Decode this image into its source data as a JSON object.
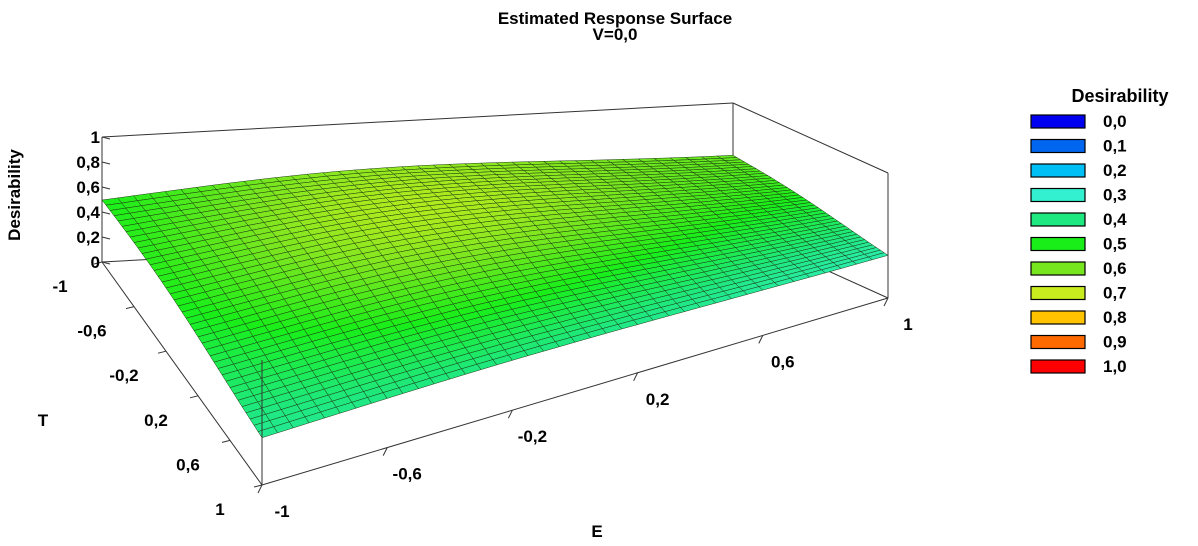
{
  "chart_data": {
    "type": "surface",
    "title": "Estimated Response Surface",
    "subtitle": "V=0,0",
    "xlabel": "E",
    "ylabel": "T",
    "zlabel": "Desirability",
    "xticks": [
      "-1",
      "-0,6",
      "-0,2",
      "0,2",
      "0,6",
      "1"
    ],
    "yticks": [
      "-1",
      "-0,6",
      "-0,2",
      "0,2",
      "0,6",
      "1"
    ],
    "zticks": [
      "0",
      "0,2",
      "0,4",
      "0,6",
      "0,8",
      "1"
    ],
    "xlim": [
      -1,
      1
    ],
    "ylim": [
      -1,
      1
    ],
    "zlim": [
      0,
      1
    ],
    "grid_size": 41,
    "corner_values": [
      {
        "E": -1,
        "T": -1,
        "desirability": 0.42
      },
      {
        "E": 1,
        "T": -1,
        "desirability": 0.55
      },
      {
        "E": -1,
        "T": 1,
        "desirability": 0.35
      },
      {
        "E": 1,
        "T": 1,
        "desirability": 0.33
      }
    ],
    "peak": {
      "E": -0.2,
      "T": -0.3,
      "desirability": 0.66
    },
    "legend": {
      "title": "Desirability",
      "placement": "right",
      "entries": [
        {
          "label": "0,0",
          "color": "#0000f0"
        },
        {
          "label": "0,1",
          "color": "#0066f0"
        },
        {
          "label": "0,2",
          "color": "#00bff5"
        },
        {
          "label": "0,3",
          "color": "#33f0d0"
        },
        {
          "label": "0,4",
          "color": "#1fe880"
        },
        {
          "label": "0,5",
          "color": "#19ee19"
        },
        {
          "label": "0,6",
          "color": "#77e61f"
        },
        {
          "label": "0,7",
          "color": "#c9ec1e"
        },
        {
          "label": "0,8",
          "color": "#ffc300"
        },
        {
          "label": "0,9",
          "color": "#ff6a00"
        },
        {
          "label": "1,0",
          "color": "#ff0000"
        }
      ]
    }
  }
}
